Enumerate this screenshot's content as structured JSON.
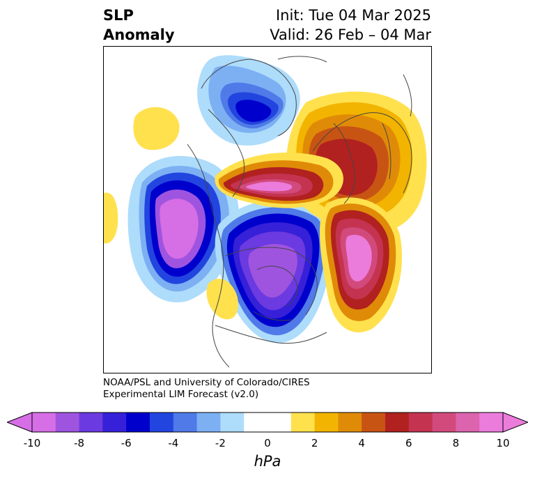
{
  "header": {
    "title_line1": "SLP",
    "title_line2": "Anomaly",
    "init": "Init: Tue 04 Mar 2025",
    "valid": "Valid: 26 Feb – 04 Mar"
  },
  "credit": {
    "line1": "NOAA/PSL and University of Colorado/CIRES",
    "line2": "Experimental LIM Forecast (v2.0)"
  },
  "colorbar": {
    "unit": "hPa",
    "ticks": [
      "-10",
      "-8",
      "-6",
      "-4",
      "-2",
      "0",
      "2",
      "4",
      "6",
      "8",
      "10"
    ],
    "colors": [
      "#d66ee6",
      "#9f54df",
      "#6b3ae0",
      "#3620d8",
      "#0000cc",
      "#2245df",
      "#4f7ae8",
      "#7cb0f3",
      "#aedcfb",
      "#ffffff",
      "#ffffff",
      "#ffe14e",
      "#f2b400",
      "#e08b08",
      "#c85414",
      "#b1211f",
      "#c43350",
      "#d24a7c",
      "#dc64ae",
      "#eb7cdc"
    ],
    "extend_low_color": "#d66ee6",
    "extend_high_color": "#eb7cdc"
  }
}
